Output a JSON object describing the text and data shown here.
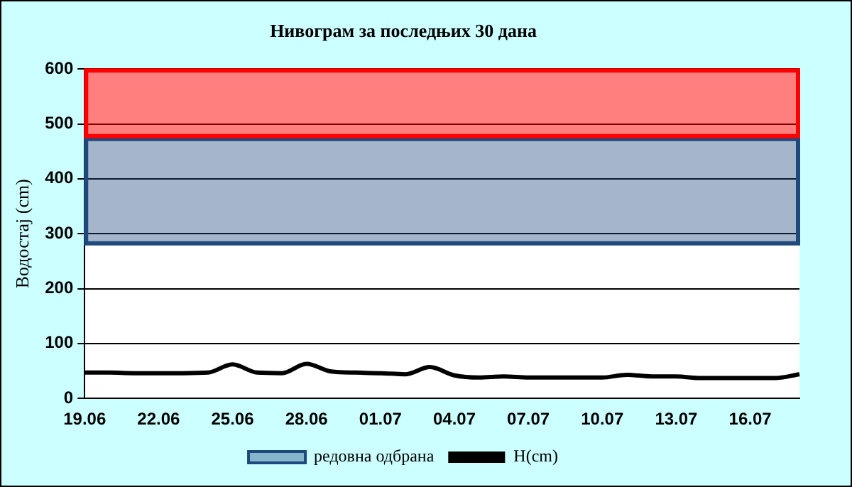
{
  "chart_data": {
    "type": "line",
    "title": "Нивограм за последњих 30 дана",
    "ylabel": "Водостај (cm)",
    "categories": [
      "19.06",
      null,
      null,
      "22.06",
      null,
      null,
      "25.06",
      null,
      null,
      "28.06",
      null,
      null,
      "01.07",
      null,
      null,
      "04.07",
      null,
      null,
      "07.07",
      null,
      null,
      "10.07",
      null,
      null,
      "13.07",
      null,
      null,
      "16.07",
      null,
      null
    ],
    "series": [
      {
        "name": "H(cm)",
        "color": "#000000",
        "values": [
          47,
          47,
          46,
          46,
          46,
          47,
          62,
          47,
          46,
          63,
          49,
          47,
          46,
          44,
          57,
          42,
          38,
          40,
          38,
          38,
          38,
          38,
          43,
          40,
          40,
          37,
          37,
          37,
          37,
          44
        ]
      }
    ],
    "ylim": [
      0,
      600
    ],
    "yticks": [
      0,
      100,
      200,
      300,
      400,
      500,
      600
    ],
    "grid": "y",
    "legend": "bottom",
    "marker": "none",
    "line_style": "solid",
    "bands": [
      {
        "axis": "y",
        "from": 280,
        "to": 475,
        "label": "редовна одбрана",
        "color": "#1f497d"
      },
      {
        "axis": "y",
        "from": 475,
        "to": 600,
        "color": "#ff0000"
      }
    ]
  }
}
